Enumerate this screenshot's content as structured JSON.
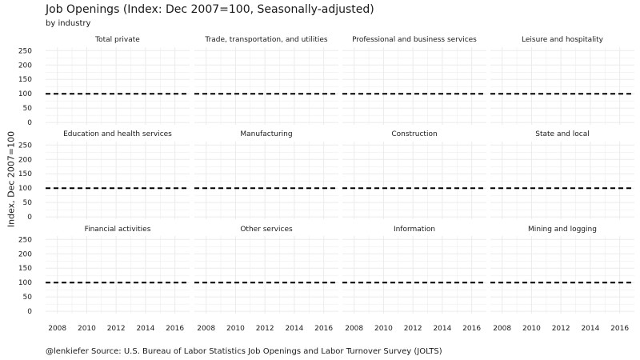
{
  "title": "Job Openings (Index: Dec 2007=100, Seasonally-adjusted)",
  "subtitle": "by industry",
  "caption": "@lenkiefer Source: U.S. Bureau of Labor Statistics Job Openings and Labor Turnover Survey (JOLTS)",
  "colors": {
    "grid": "#ebebeb",
    "reference_line": "#000000"
  },
  "chart_data": {
    "type": "line",
    "facets": [
      "Total private",
      "Trade, transportation, and utilities",
      "Professional and business services",
      "Leisure and hospitality",
      "Education and health services",
      "Manufacturing",
      "Construction",
      "State and local",
      "Financial activities",
      "Other services",
      "Information",
      "Mining and logging"
    ],
    "facet_layout": {
      "rows": 3,
      "cols": 4
    },
    "x_ticks": [
      "2008",
      "2010",
      "2012",
      "2014",
      "2016"
    ],
    "y_ticks": [
      "0",
      "50",
      "100",
      "150",
      "200",
      "250"
    ],
    "xlim": [
      2007.2,
      2017.0
    ],
    "ylim": [
      -8,
      262
    ],
    "ylabel": "Index, Dec 2007=100",
    "reference_line": {
      "y": 100,
      "style": "dashed"
    },
    "grid": true
  }
}
